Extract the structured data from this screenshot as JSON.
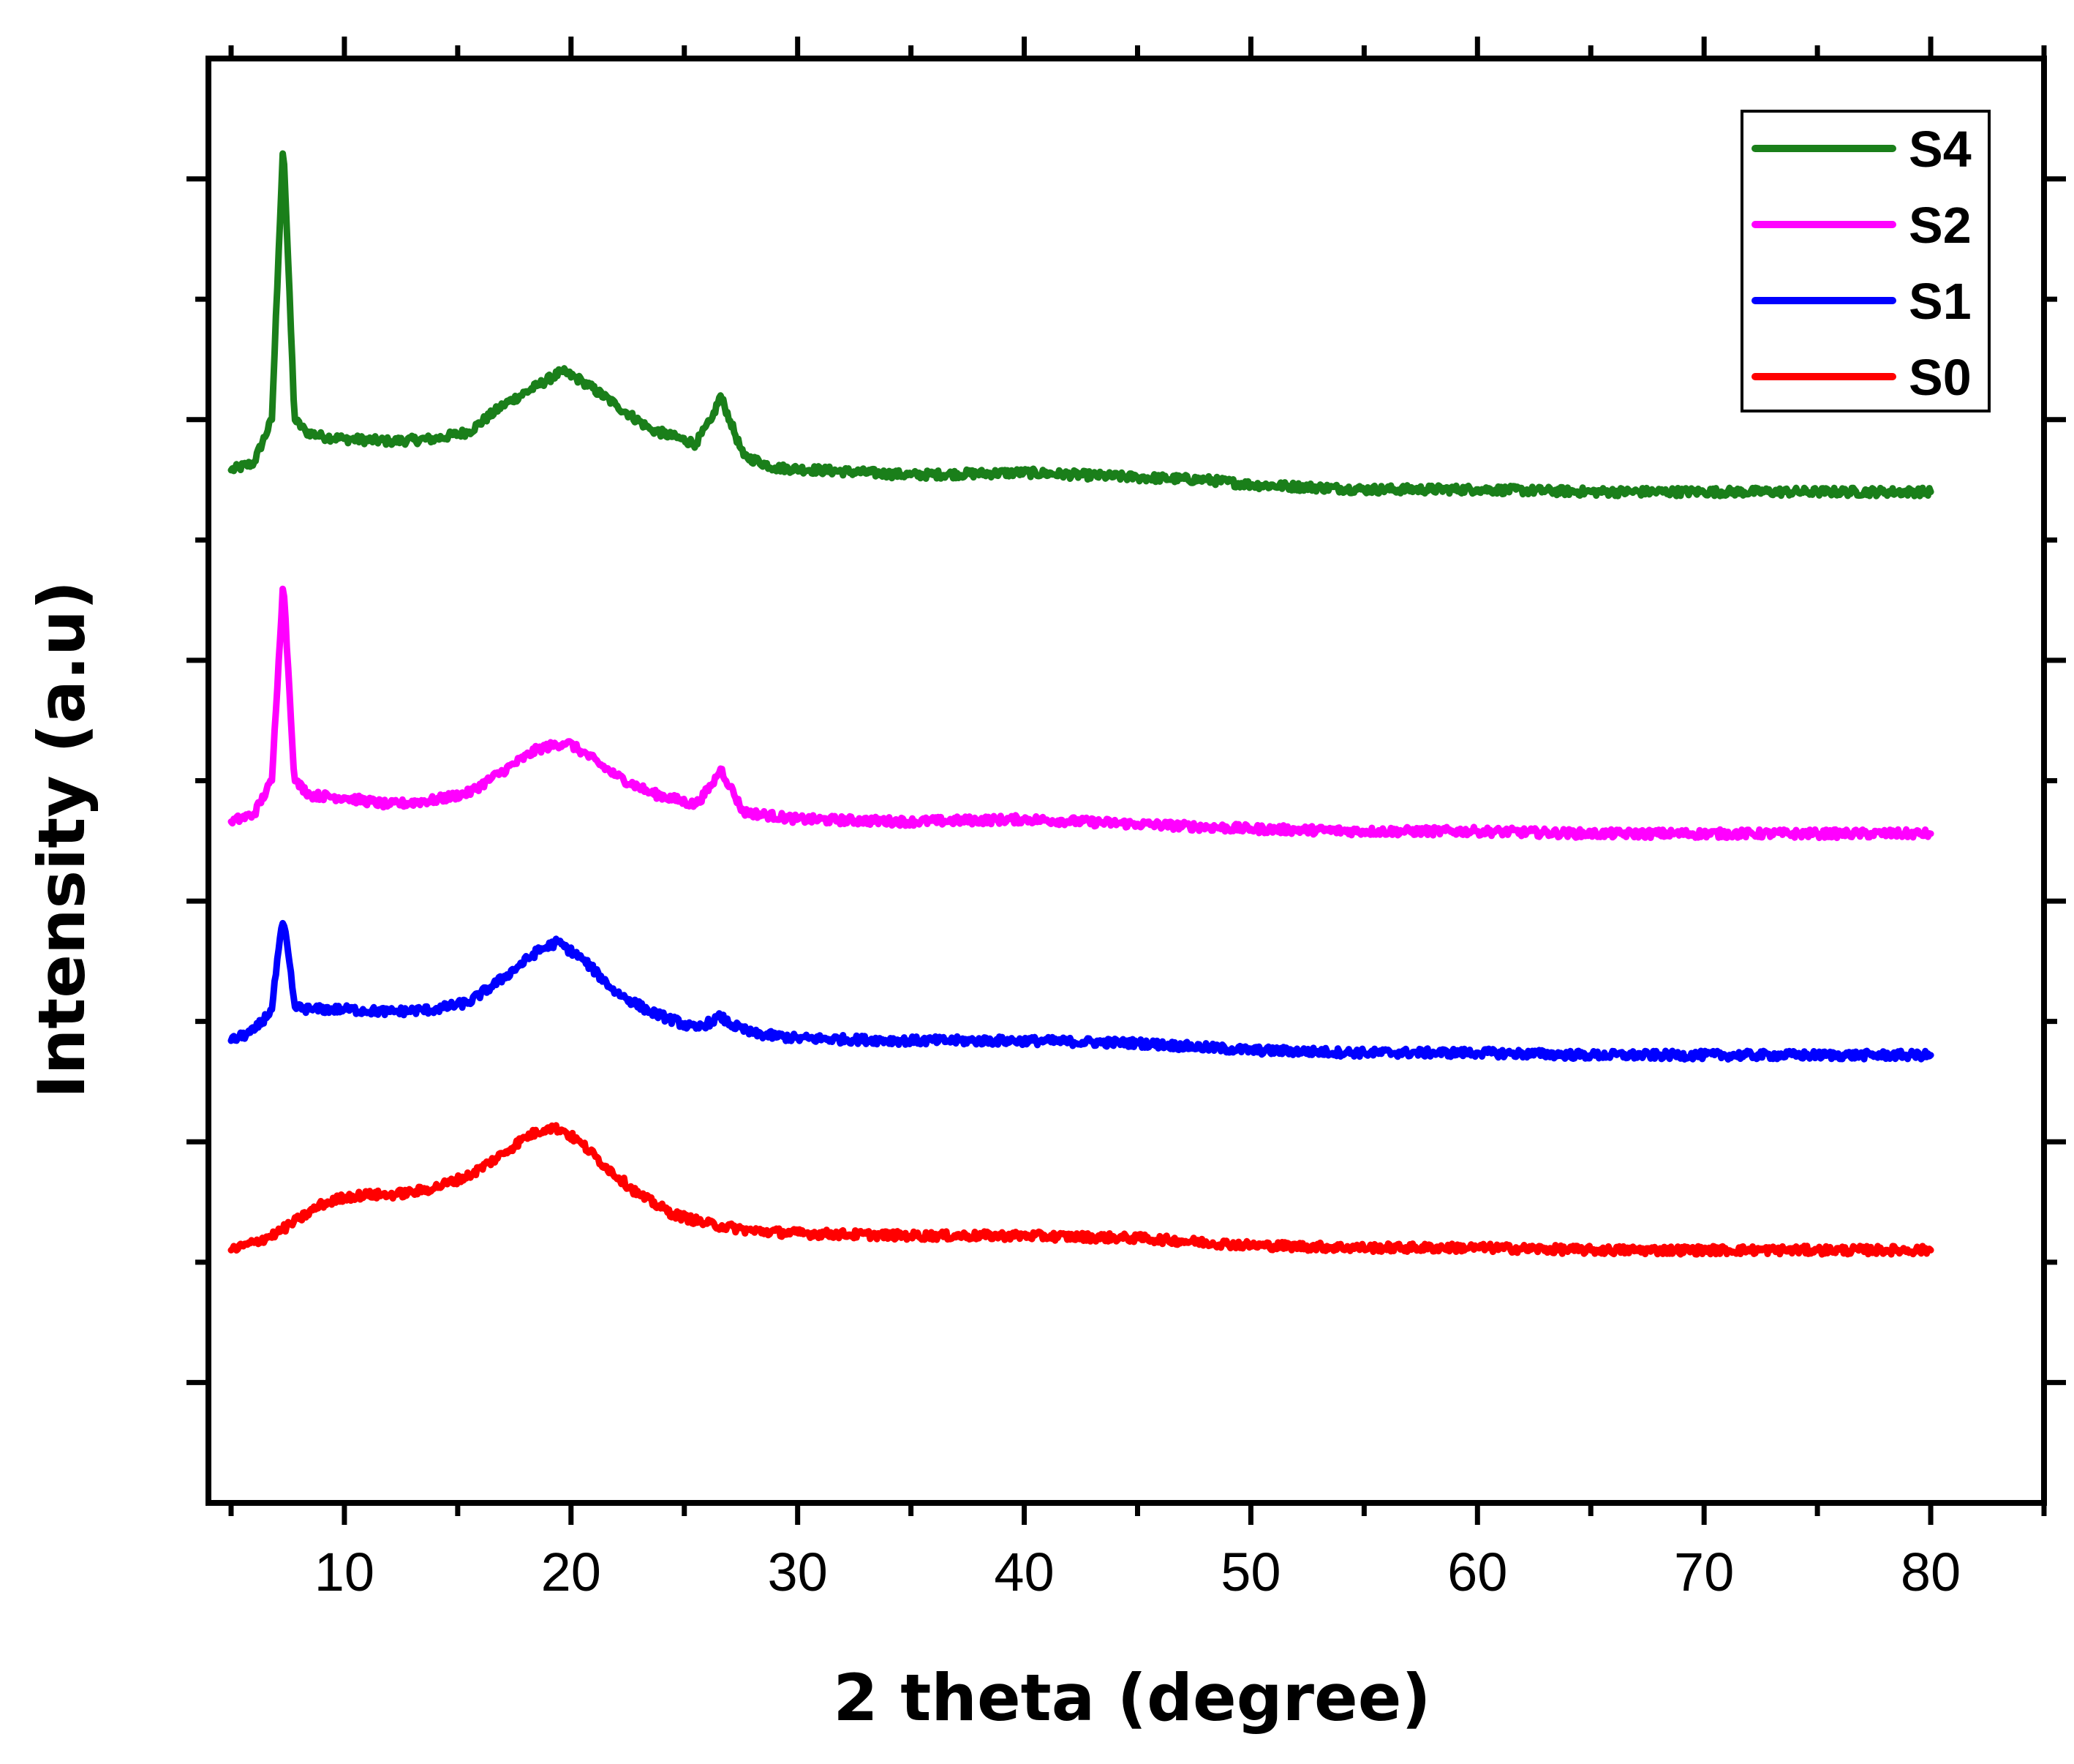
{
  "chart_data": {
    "type": "line",
    "title": "",
    "xlabel": "2 theta (degree)",
    "ylabel": "Intensity (a.u)",
    "xlim": [
      4,
      85
    ],
    "ylim": [
      0,
      6
    ],
    "x_ticks": [
      10,
      20,
      30,
      40,
      50,
      60,
      70,
      80
    ],
    "x_minor_ticks": [
      5,
      15,
      25,
      35,
      45,
      55,
      65,
      75,
      85
    ],
    "y_ticks": [
      0.5,
      1.5,
      2.5,
      3.5,
      4.5,
      5.5
    ],
    "y_minor_ticks": [
      1,
      2,
      3,
      4,
      5
    ],
    "show_y_tick_labels": false,
    "grid": false,
    "legend_position": "top-right",
    "series": [
      {
        "name": "S4",
        "color": "#1a7f1a",
        "points": [
          [
            5,
            4.29
          ],
          [
            6,
            4.32
          ],
          [
            6.8,
            4.5
          ],
          [
            7.1,
            5.2
          ],
          [
            7.3,
            5.65
          ],
          [
            7.5,
            5.2
          ],
          [
            7.8,
            4.5
          ],
          [
            8.3,
            4.45
          ],
          [
            9,
            4.43
          ],
          [
            10,
            4.42
          ],
          [
            12,
            4.41
          ],
          [
            14,
            4.42
          ],
          [
            15.5,
            4.45
          ],
          [
            17,
            4.56
          ],
          [
            18.5,
            4.64
          ],
          [
            19.6,
            4.7
          ],
          [
            20.5,
            4.66
          ],
          [
            22,
            4.56
          ],
          [
            23.5,
            4.46
          ],
          [
            25.5,
            4.4
          ],
          [
            26.2,
            4.5
          ],
          [
            26.6,
            4.6
          ],
          [
            27,
            4.5
          ],
          [
            27.6,
            4.35
          ],
          [
            29,
            4.3
          ],
          [
            35,
            4.27
          ],
          [
            40,
            4.28
          ],
          [
            45,
            4.26
          ],
          [
            48,
            4.25
          ],
          [
            50,
            4.23
          ],
          [
            55,
            4.21
          ],
          [
            60,
            4.21
          ],
          [
            65,
            4.2
          ],
          [
            70,
            4.2
          ],
          [
            75,
            4.2
          ],
          [
            80,
            4.2
          ]
        ]
      },
      {
        "name": "S2",
        "color": "#ff00ff",
        "points": [
          [
            5,
            2.83
          ],
          [
            6,
            2.86
          ],
          [
            6.8,
            3
          ],
          [
            7.1,
            3.5
          ],
          [
            7.3,
            3.83
          ],
          [
            7.5,
            3.5
          ],
          [
            7.8,
            3
          ],
          [
            8.5,
            2.94
          ],
          [
            10,
            2.93
          ],
          [
            12,
            2.9
          ],
          [
            14,
            2.92
          ],
          [
            15.5,
            2.95
          ],
          [
            17,
            3.04
          ],
          [
            18.5,
            3.13
          ],
          [
            19.8,
            3.16
          ],
          [
            20.5,
            3.12
          ],
          [
            22,
            3.02
          ],
          [
            23.5,
            2.95
          ],
          [
            25.5,
            2.9
          ],
          [
            26.2,
            2.98
          ],
          [
            26.6,
            3.05
          ],
          [
            27,
            2.98
          ],
          [
            27.6,
            2.87
          ],
          [
            30,
            2.84
          ],
          [
            35,
            2.83
          ],
          [
            40,
            2.84
          ],
          [
            45,
            2.82
          ],
          [
            50,
            2.8
          ],
          [
            55,
            2.79
          ],
          [
            60,
            2.79
          ],
          [
            65,
            2.78
          ],
          [
            70,
            2.78
          ],
          [
            75,
            2.78
          ],
          [
            80,
            2.78
          ]
        ]
      },
      {
        "name": "S1",
        "color": "#0000ff",
        "points": [
          [
            5,
            1.92
          ],
          [
            6,
            1.96
          ],
          [
            6.8,
            2.05
          ],
          [
            7.1,
            2.3
          ],
          [
            7.3,
            2.42
          ],
          [
            7.5,
            2.3
          ],
          [
            7.8,
            2.06
          ],
          [
            8.5,
            2.05
          ],
          [
            10,
            2.05
          ],
          [
            12,
            2.04
          ],
          [
            14,
            2.05
          ],
          [
            15.5,
            2.08
          ],
          [
            17,
            2.18
          ],
          [
            18.5,
            2.29
          ],
          [
            19.4,
            2.33
          ],
          [
            20.5,
            2.26
          ],
          [
            22,
            2.12
          ],
          [
            23.5,
            2.04
          ],
          [
            25.5,
            1.97
          ],
          [
            26.2,
            2
          ],
          [
            26.6,
            2.02
          ],
          [
            27,
            1.99
          ],
          [
            28,
            1.95
          ],
          [
            30,
            1.93
          ],
          [
            35,
            1.92
          ],
          [
            40,
            1.92
          ],
          [
            45,
            1.91
          ],
          [
            50,
            1.88
          ],
          [
            55,
            1.87
          ],
          [
            60,
            1.87
          ],
          [
            65,
            1.86
          ],
          [
            70,
            1.86
          ],
          [
            75,
            1.86
          ],
          [
            80,
            1.86
          ]
        ]
      },
      {
        "name": "S0",
        "color": "#ff0000",
        "points": [
          [
            5,
            1.05
          ],
          [
            6,
            1.08
          ],
          [
            7,
            1.12
          ],
          [
            8,
            1.18
          ],
          [
            9,
            1.24
          ],
          [
            10,
            1.27
          ],
          [
            11,
            1.28
          ],
          [
            12,
            1.28
          ],
          [
            13,
            1.29
          ],
          [
            14,
            1.31
          ],
          [
            15.5,
            1.36
          ],
          [
            17,
            1.45
          ],
          [
            18,
            1.52
          ],
          [
            19,
            1.56
          ],
          [
            19.6,
            1.55
          ],
          [
            20.5,
            1.49
          ],
          [
            21.5,
            1.4
          ],
          [
            23,
            1.28
          ],
          [
            24.5,
            1.2
          ],
          [
            26,
            1.16
          ],
          [
            28,
            1.13
          ],
          [
            30,
            1.12
          ],
          [
            35,
            1.11
          ],
          [
            40,
            1.11
          ],
          [
            45,
            1.1
          ],
          [
            50,
            1.07
          ],
          [
            55,
            1.06
          ],
          [
            60,
            1.06
          ],
          [
            65,
            1.05
          ],
          [
            70,
            1.05
          ],
          [
            75,
            1.05
          ],
          [
            80,
            1.05
          ]
        ]
      }
    ]
  }
}
